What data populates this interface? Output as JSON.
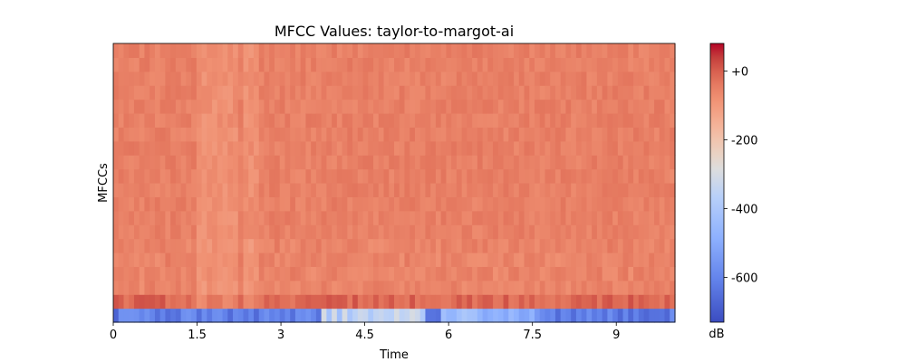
{
  "chart_data": {
    "type": "heatmap",
    "title": "MFCC Values: taylor-to-margot-ai",
    "xlabel": "Time",
    "ylabel": "MFCCs",
    "x_range": [
      0,
      10.05
    ],
    "x_ticks": [
      0,
      1.5,
      3,
      4.5,
      6,
      7.5,
      9
    ],
    "x_tick_labels": [
      "0",
      "1.5",
      "3",
      "4.5",
      "6",
      "7.5",
      "9"
    ],
    "n_coefficients": 20,
    "n_frames": 108,
    "colormap": "coolwarm",
    "colorbar": {
      "label": "dB",
      "range": [
        -730,
        80
      ],
      "ticks": [
        0,
        -200,
        -400,
        -600
      ],
      "tick_labels": [
        "+0",
        "-200",
        "-400",
        "-600"
      ]
    },
    "description_levels": {
      "coefficient_0_typical_db": -640,
      "coefficient_0_range_db": [
        -700,
        -300
      ],
      "coefficient_1_typical_db": -10,
      "coefficients_2_19_typical_db": -50
    }
  }
}
